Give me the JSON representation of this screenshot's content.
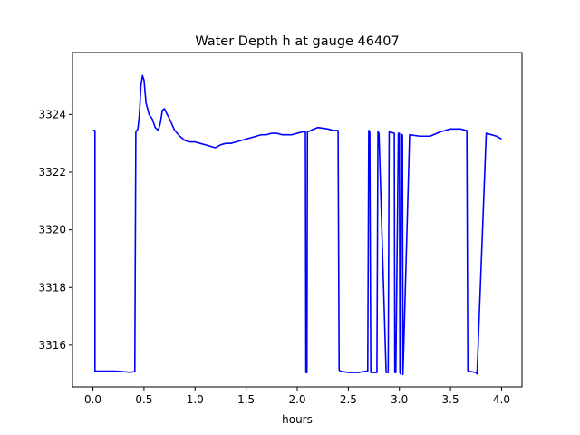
{
  "chart_data": {
    "type": "line",
    "title": "Water Depth h at gauge 46407",
    "xlabel": "hours",
    "ylabel": "",
    "xlim": [
      -0.2,
      4.2
    ],
    "ylim": [
      3314.55,
      3326.15
    ],
    "xticks": [
      0.0,
      0.5,
      1.0,
      1.5,
      2.0,
      2.5,
      3.0,
      3.5,
      4.0
    ],
    "xtick_labels": [
      "0.0",
      "0.5",
      "1.0",
      "1.5",
      "2.0",
      "2.5",
      "3.0",
      "3.5",
      "4.0"
    ],
    "yticks": [
      3316,
      3318,
      3320,
      3322,
      3324
    ],
    "ytick_labels": [
      "3316",
      "3318",
      "3320",
      "3322",
      "3324"
    ],
    "grid": false,
    "series": [
      {
        "color": "#0000ff",
        "x": [
          0.0,
          0.02,
          0.02,
          0.1,
          0.2,
          0.3,
          0.36,
          0.41,
          0.42,
          0.44,
          0.455,
          0.47,
          0.485,
          0.5,
          0.52,
          0.55,
          0.58,
          0.61,
          0.64,
          0.66,
          0.68,
          0.7,
          0.72,
          0.75,
          0.8,
          0.85,
          0.9,
          0.95,
          1.0,
          1.05,
          1.1,
          1.15,
          1.2,
          1.25,
          1.3,
          1.35,
          1.4,
          1.45,
          1.5,
          1.55,
          1.6,
          1.65,
          1.7,
          1.75,
          1.8,
          1.85,
          1.9,
          1.95,
          2.0,
          2.05,
          2.08,
          2.085,
          2.095,
          2.1,
          2.2,
          2.3,
          2.35,
          2.4,
          2.41,
          2.42,
          2.5,
          2.6,
          2.68,
          2.69,
          2.7,
          2.71,
          2.72,
          2.77,
          2.78,
          2.79,
          2.8,
          2.87,
          2.88,
          2.89,
          2.9,
          2.95,
          2.955,
          2.96,
          2.965,
          2.99,
          3.0,
          3.005,
          3.01,
          3.02,
          3.03,
          3.035,
          3.1,
          3.2,
          3.3,
          3.4,
          3.5,
          3.6,
          3.65,
          3.66,
          3.67,
          3.75,
          3.76,
          3.76,
          3.85,
          3.95,
          4.0
        ],
        "y": [
          3323.45,
          3323.45,
          3315.1,
          3315.1,
          3315.1,
          3315.08,
          3315.06,
          3315.08,
          3323.4,
          3323.5,
          3324.0,
          3325.0,
          3325.35,
          3325.2,
          3324.4,
          3324.0,
          3323.85,
          3323.55,
          3323.45,
          3323.7,
          3324.15,
          3324.2,
          3324.05,
          3323.85,
          3323.45,
          3323.25,
          3323.1,
          3323.05,
          3323.05,
          3323.0,
          3322.95,
          3322.9,
          3322.85,
          3322.95,
          3323.0,
          3323.0,
          3323.05,
          3323.1,
          3323.15,
          3323.2,
          3323.25,
          3323.3,
          3323.3,
          3323.35,
          3323.35,
          3323.3,
          3323.3,
          3323.3,
          3323.35,
          3323.4,
          3323.4,
          3315.05,
          3315.05,
          3323.4,
          3323.55,
          3323.5,
          3323.45,
          3323.45,
          3315.15,
          3315.1,
          3315.05,
          3315.05,
          3315.1,
          3315.1,
          3323.45,
          3323.4,
          3315.05,
          3315.05,
          3315.05,
          3323.4,
          3323.35,
          3315.05,
          3315.05,
          3315.05,
          3323.4,
          3323.35,
          3315.05,
          3315.05,
          3315.05,
          3323.35,
          3323.35,
          3315.05,
          3315.0,
          3323.3,
          3323.3,
          3314.98,
          3323.3,
          3323.25,
          3323.25,
          3323.4,
          3323.5,
          3323.5,
          3323.45,
          3323.45,
          3315.1,
          3315.05,
          3315.0,
          3315.0,
          3323.35,
          3323.25,
          3323.15
        ]
      }
    ]
  }
}
